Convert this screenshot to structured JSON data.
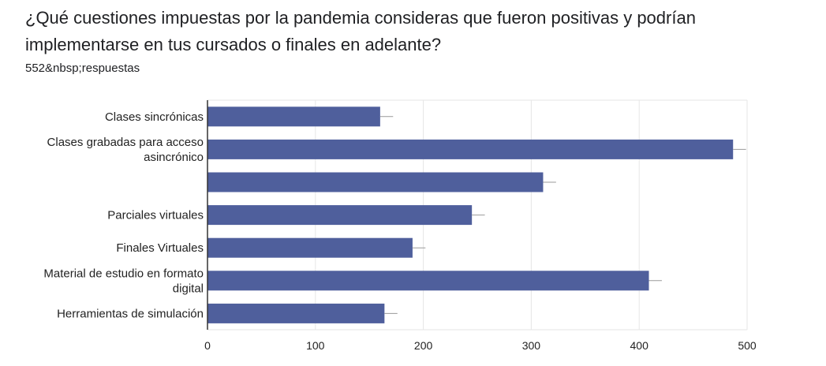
{
  "question": {
    "title_line1": "¿Qué cuestiones impuestas por la pandemia consideras que fueron positivas y podrían",
    "title_line2": "implementarse en tus cursados o finales en adelante?",
    "responses": "552&nbsp;respuestas"
  },
  "colors": {
    "bar": "#4f5f9c",
    "grid": "#e6e6e6",
    "axis": "#333333",
    "text": "#222222",
    "error": "#9a9a9a"
  },
  "chart_data": {
    "type": "bar",
    "orientation": "horizontal",
    "categories": [
      [
        "Clases sincrónicas"
      ],
      [
        "Clases grabadas para acceso",
        "asincrónico"
      ],
      [],
      [
        "Parciales virtuales"
      ],
      [
        "Finales Virtuales"
      ],
      [
        "Material de estudio en formato",
        "digital"
      ],
      [
        "Herramientas de simulación"
      ]
    ],
    "values": [
      160,
      487,
      311,
      245,
      190,
      409,
      164
    ],
    "error_bar": 12,
    "xlim": [
      0,
      500
    ],
    "xticks": [
      0,
      100,
      200,
      300,
      400,
      500
    ],
    "grid": true
  }
}
